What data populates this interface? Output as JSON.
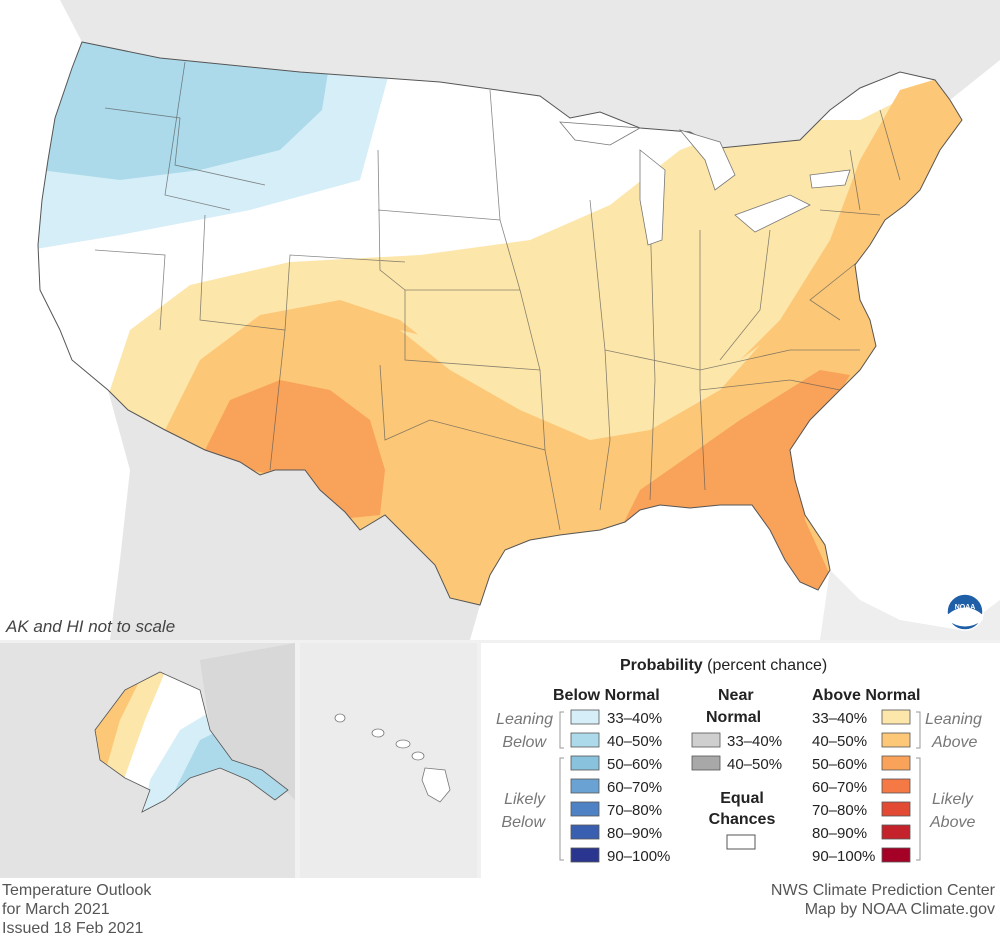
{
  "map": {
    "scale_note": "AK and HI not to scale"
  },
  "legend": {
    "title_bold": "Probability",
    "title_rest": "(percent chance)",
    "below_header": "Below Normal",
    "near_header_line1": "Near",
    "near_header_line2": "Normal",
    "above_header": "Above Normal",
    "leaning_below_1": "Leaning",
    "leaning_below_2": "Below",
    "likely_below_1": "Likely",
    "likely_below_2": "Below",
    "leaning_above_1": "Leaning",
    "leaning_above_2": "Above",
    "likely_above_1": "Likely",
    "likely_above_2": "Above",
    "equal_line1": "Equal",
    "equal_line2": "Chances",
    "below": [
      {
        "label": "33–40%",
        "color": "#d6eef8"
      },
      {
        "label": "40–50%",
        "color": "#acdaea"
      },
      {
        "label": "50–60%",
        "color": "#88c2dd"
      },
      {
        "label": "60–70%",
        "color": "#6aa3d3"
      },
      {
        "label": "70–80%",
        "color": "#4f82c4"
      },
      {
        "label": "80–90%",
        "color": "#3a5fb0"
      },
      {
        "label": "90–100%",
        "color": "#2a3590"
      }
    ],
    "near": [
      {
        "label": "33–40%",
        "color": "#cfcfcf"
      },
      {
        "label": "40–50%",
        "color": "#a8a8a8"
      }
    ],
    "above": [
      {
        "label": "33–40%",
        "color": "#fde6a9"
      },
      {
        "label": "40–50%",
        "color": "#fcc878"
      },
      {
        "label": "50–60%",
        "color": "#f9a35a"
      },
      {
        "label": "60–70%",
        "color": "#f47944"
      },
      {
        "label": "70–80%",
        "color": "#e24a34"
      },
      {
        "label": "80–90%",
        "color": "#c4232b"
      },
      {
        "label": "90–100%",
        "color": "#a50026"
      }
    ]
  },
  "footer": {
    "left_line1": "Temperature Outlook",
    "left_line2": "for March 2021",
    "left_line3": "Issued 18 Feb 2021",
    "right_line1": "NWS Climate Prediction Center",
    "right_line2": "Map by NOAA Climate.gov"
  },
  "logo": {
    "text": "NOAA"
  }
}
